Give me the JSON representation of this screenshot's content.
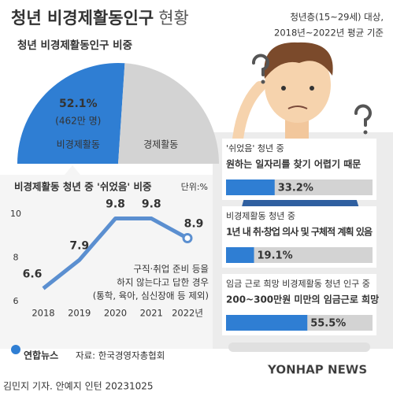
{
  "header": {
    "title": "청년 비경제활동인구",
    "title_light": "현황",
    "note_lines": [
      "청년층(15~29세) 대상,",
      "2018년~2022년 평균 기준"
    ]
  },
  "chart_data": [
    {
      "type": "pie",
      "title": "청년 비경제활동인구 비중",
      "categories": [
        "비경제활동",
        "경제활동"
      ],
      "values": [
        52.1,
        47.9
      ],
      "value_labels": [
        "52.1%",
        null
      ],
      "annotations": [
        "(462만 명)"
      ],
      "colors": [
        "#2f7ed3",
        "#d3d3d3"
      ],
      "half": true
    },
    {
      "type": "line",
      "title": "비경제활동 청년 중 '쉬었음' 비중",
      "unit": "단위:%",
      "categories": [
        "2018",
        "2019",
        "2020",
        "2021",
        "2022년"
      ],
      "values": [
        6.6,
        7.9,
        9.8,
        9.8,
        8.9
      ],
      "color": "#5b8fd0",
      "ylim": [
        6,
        10
      ],
      "yticks": [
        6,
        8,
        10
      ],
      "grid": false,
      "annotations": [
        "구직·취업 준비 등을",
        "하지 않는다고 답한 경우",
        "(통학, 육아, 심신장애 등 제외)"
      ]
    },
    {
      "type": "bar",
      "orientation": "horizontal",
      "subtitles": [
        "'쉬었음' 청년 중",
        "비경제활동 청년 중",
        "임금 근로 희망 비경제활동 청년 인구 중"
      ],
      "categories": [
        "원하는 일자리를 찾기 어렵기 때문",
        "1년 내 취·창업 의사 및 구체적 계획 있음",
        "200~300만원 미만의 임금근로 희망"
      ],
      "values": [
        33.2,
        19.1,
        55.5
      ],
      "value_labels": [
        "33.2%",
        "19.1%",
        "55.5%"
      ],
      "xlim": [
        0,
        100
      ],
      "color": "#2f7ed3",
      "track_color": "#d3d3d3"
    }
  ],
  "footer": {
    "logo": "연합뉴스",
    "source": "자료: 한국경영자총협회",
    "byline": "김민지 기자. 안예지 인턴 20231025",
    "watermark": "YONHAP NEWS"
  }
}
